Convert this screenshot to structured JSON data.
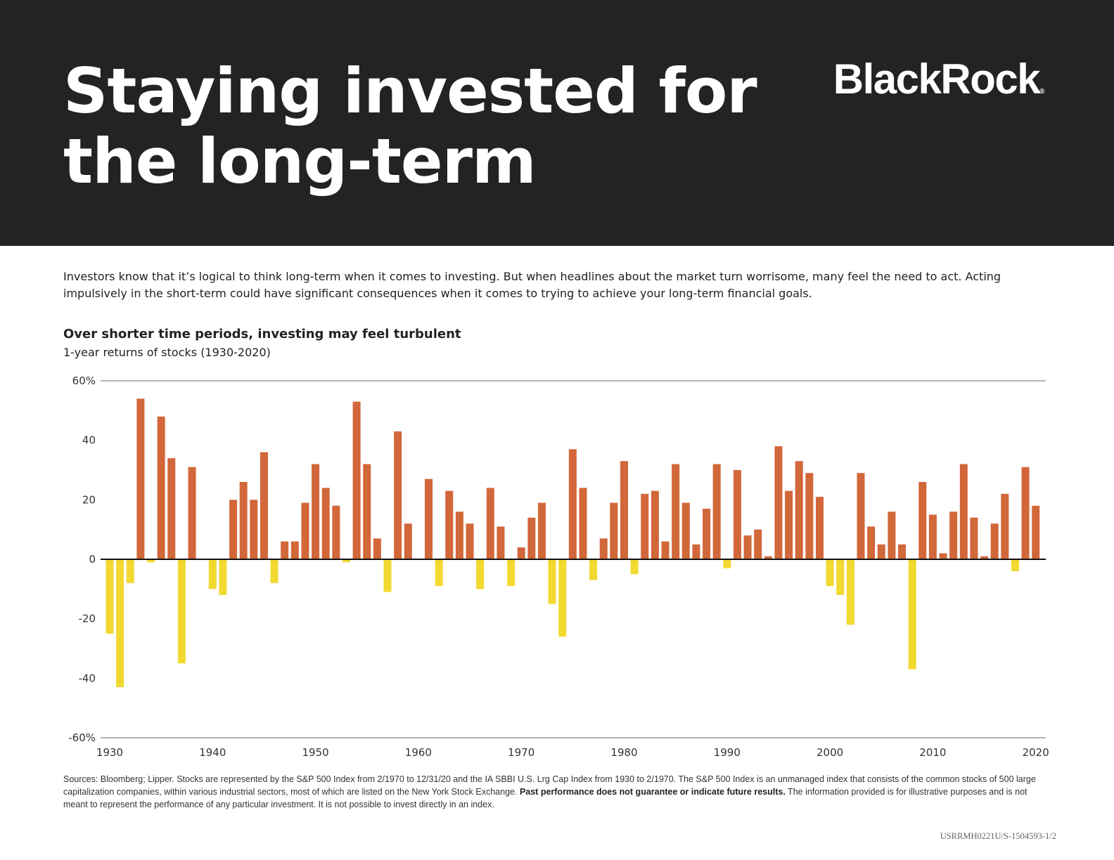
{
  "header": {
    "title": "Staying invested for the long-term",
    "logo_text": "BlackRock",
    "logo_mark": "®"
  },
  "intro": "Investors know that it’s logical to think long-term when it comes to investing. But when headlines about the market turn worrisome, many feel the need to act. Acting impulsively in the short-term could have significant consequences when it comes to trying to achieve your long-term financial goals.",
  "colors": {
    "header_bg": "#222423",
    "positive_bar": "#D2673A",
    "negative_bar": "#F2D930",
    "axis_line": "#111111",
    "grid_line": "#888888"
  },
  "chart_data": {
    "type": "bar",
    "title": "Over shorter time periods, investing may feel turbulent",
    "subtitle": "1-year returns of stocks (1930-2020)",
    "xlabel": "",
    "ylabel": "",
    "ylim": [
      -60,
      60
    ],
    "y_ticks": [
      {
        "value": 60,
        "label": "60%"
      },
      {
        "value": 40,
        "label": "40"
      },
      {
        "value": 20,
        "label": "20"
      },
      {
        "value": 0,
        "label": "0"
      },
      {
        "value": -20,
        "label": "-20"
      },
      {
        "value": -40,
        "label": "-40"
      },
      {
        "value": -60,
        "label": "-60%"
      }
    ],
    "x_ticks": [
      1930,
      1940,
      1950,
      1960,
      1970,
      1980,
      1990,
      2000,
      2010,
      2020
    ],
    "years": [
      1930,
      1931,
      1932,
      1933,
      1934,
      1935,
      1936,
      1937,
      1938,
      1939,
      1940,
      1941,
      1942,
      1943,
      1944,
      1945,
      1946,
      1947,
      1948,
      1949,
      1950,
      1951,
      1952,
      1953,
      1954,
      1955,
      1956,
      1957,
      1958,
      1959,
      1960,
      1961,
      1962,
      1963,
      1964,
      1965,
      1966,
      1967,
      1968,
      1969,
      1970,
      1971,
      1972,
      1973,
      1974,
      1975,
      1976,
      1977,
      1978,
      1979,
      1980,
      1981,
      1982,
      1983,
      1984,
      1985,
      1986,
      1987,
      1988,
      1989,
      1990,
      1991,
      1992,
      1993,
      1994,
      1995,
      1996,
      1997,
      1998,
      1999,
      2000,
      2001,
      2002,
      2003,
      2004,
      2005,
      2006,
      2007,
      2008,
      2009,
      2010,
      2011,
      2012,
      2013,
      2014,
      2015,
      2016,
      2017,
      2018,
      2019,
      2020
    ],
    "values": [
      -25,
      -43,
      -8,
      54,
      -1,
      48,
      34,
      -35,
      31,
      0,
      -10,
      -12,
      20,
      26,
      20,
      36,
      -8,
      6,
      6,
      19,
      32,
      24,
      18,
      -1,
      53,
      32,
      7,
      -11,
      43,
      12,
      0,
      27,
      -9,
      23,
      16,
      12,
      -10,
      24,
      11,
      -9,
      4,
      14,
      19,
      -15,
      -26,
      37,
      24,
      -7,
      7,
      19,
      33,
      -5,
      22,
      23,
      6,
      32,
      19,
      5,
      17,
      32,
      -3,
      30,
      8,
      10,
      1,
      38,
      23,
      33,
      29,
      21,
      -9,
      -12,
      -22,
      29,
      11,
      5,
      16,
      5,
      -37,
      26,
      15,
      2,
      16,
      32,
      14,
      1,
      12,
      22,
      -4,
      31,
      18
    ]
  },
  "sources": {
    "text_before": "Sources: Bloomberg; Lipper. Stocks are represented by the S&P 500 Index from 2/1970 to 12/31/20 and the IA SBBI U.S. Lrg Cap Index from 1930 to 2/1970. The S&P 500 Index is an unmanaged index that consists of the common stocks of 500 large capitalization companies, within various industrial sectors, most of which are listed on the New York Stock Exchange. ",
    "bold": "Past performance does not guarantee or indicate future results.",
    "text_after": " The information provided is for illustrative purposes and is not meant to represent the performance of any particular investment. It is not possible to invest directly in an index."
  },
  "doc_code": "USRRMH0221U/S-1504593-1/2"
}
